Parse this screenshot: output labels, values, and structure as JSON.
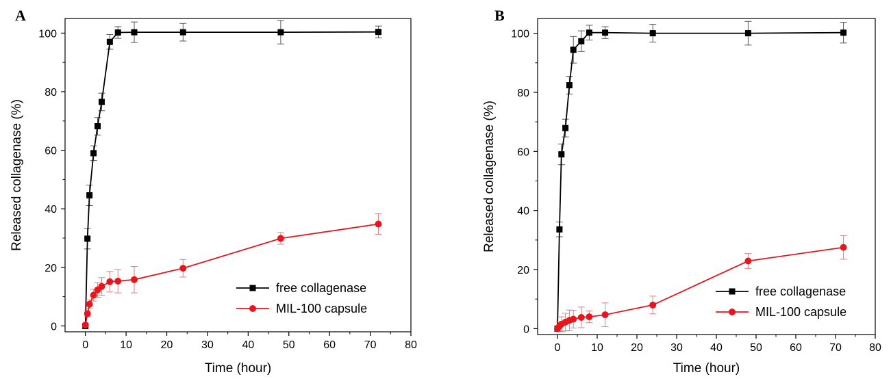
{
  "chart_data": [
    {
      "type": "line",
      "panel_label": "A",
      "xlabel": "Time (hour)",
      "ylabel": "Released collagenase (%)",
      "xlim": [
        -5,
        80
      ],
      "ylim": [
        -2,
        105
      ],
      "xticks": [
        0,
        10,
        20,
        30,
        40,
        50,
        60,
        70,
        80
      ],
      "yticks": [
        0,
        20,
        40,
        60,
        80,
        100
      ],
      "grid": false,
      "legend_position": "bottom-right",
      "series": [
        {
          "name": "free collagenase",
          "color": "#000000",
          "marker": "square",
          "x": [
            0,
            0.5,
            1,
            2,
            3,
            4,
            6,
            8,
            12,
            24,
            48,
            72
          ],
          "y": [
            0,
            29.8,
            44.6,
            59.0,
            68.2,
            76.5,
            97.0,
            100.2,
            100.3,
            100.3,
            100.3,
            100.4
          ],
          "err": [
            0,
            3.5,
            3.5,
            2.5,
            3.0,
            3.0,
            2.5,
            2.0,
            3.5,
            3.0,
            4.0,
            2.0
          ]
        },
        {
          "name": "MIL-100 capsule",
          "color": "#e8141e",
          "marker": "circle",
          "x": [
            0,
            0.5,
            1,
            2,
            3,
            4,
            6,
            8,
            12,
            24,
            48,
            72
          ],
          "y": [
            0.3,
            4.2,
            7.4,
            10.5,
            12.3,
            13.5,
            15.1,
            15.3,
            15.8,
            19.7,
            29.9,
            34.8
          ],
          "err": [
            0,
            1.0,
            1.5,
            2.0,
            2.5,
            3.0,
            3.5,
            4.0,
            4.5,
            3.0,
            2.0,
            3.5
          ]
        }
      ]
    },
    {
      "type": "line",
      "panel_label": "B",
      "xlabel": "Time (hour)",
      "ylabel": "Released collagenase (%)",
      "xlim": [
        -5,
        80
      ],
      "ylim": [
        -2,
        105
      ],
      "xticks": [
        0,
        10,
        20,
        30,
        40,
        50,
        60,
        70,
        80
      ],
      "yticks": [
        0,
        20,
        40,
        60,
        80,
        100
      ],
      "grid": false,
      "legend_position": "bottom-right",
      "series": [
        {
          "name": "free collagenase",
          "color": "#000000",
          "marker": "square",
          "x": [
            0,
            0.5,
            1,
            2,
            3,
            4,
            6,
            8,
            12,
            24,
            48,
            72
          ],
          "y": [
            0,
            33.6,
            59.0,
            67.9,
            82.4,
            94.4,
            97.3,
            100.2,
            100.2,
            100.0,
            100.0,
            100.2
          ],
          "err": [
            0,
            2.5,
            3.5,
            3.0,
            3.0,
            4.5,
            3.5,
            2.5,
            2.0,
            3.0,
            4.0,
            3.5
          ]
        },
        {
          "name": "MIL-100 capsule",
          "color": "#e8141e",
          "marker": "circle",
          "x": [
            0,
            0.5,
            1,
            2,
            3,
            4,
            6,
            8,
            12,
            24,
            48,
            72
          ],
          "y": [
            0,
            0.8,
            1.5,
            2.2,
            2.8,
            3.2,
            3.8,
            4.0,
            4.7,
            8.0,
            22.9,
            27.5
          ],
          "err": [
            0,
            1.5,
            2.5,
            3.0,
            3.5,
            3.0,
            3.5,
            2.0,
            4.0,
            3.0,
            2.5,
            4.0
          ]
        }
      ]
    }
  ]
}
